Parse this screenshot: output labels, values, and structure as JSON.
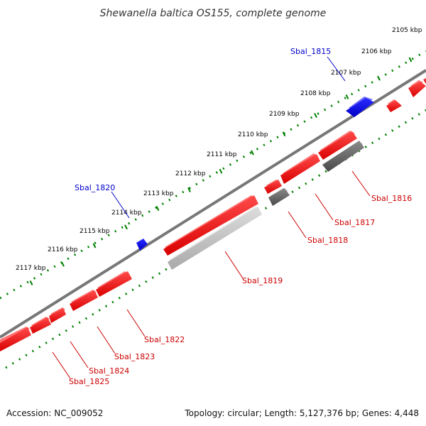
{
  "title": "Shewanella baltica OS155, complete genome",
  "footer": {
    "accession": "Accession: NC_009052",
    "summary": "Topology: circular; Length: 5,127,376 bp; Genes: 4,448"
  },
  "colors": {
    "forward_gene": "#ff0000",
    "reverse_gene_dark": "#666666",
    "reverse_gene_light": "#c0c0c0",
    "highlight_gene": "#0000ee",
    "tick": "#008000",
    "backbone": "#777777",
    "label_red": "#cc0000",
    "label_blue": "#0000cc"
  },
  "kbp_labels": [
    "2105 kbp",
    "2106 kbp",
    "2107 kbp",
    "2108 kbp",
    "2109 kbp",
    "2110 kbp",
    "2111 kbp",
    "2112 kbp",
    "2113 kbp",
    "2114 kbp",
    "2115 kbp",
    "2116 kbp",
    "2117 kbp"
  ],
  "gene_labels": {
    "highlighted": [
      "Sbal_1815",
      "Sbal_1820"
    ],
    "regular": [
      "Sbal_1816",
      "Sbal_1817",
      "Sbal_1818",
      "Sbal_1819",
      "Sbal_1822",
      "Sbal_1823",
      "Sbal_1824",
      "Sbal_1825"
    ]
  }
}
